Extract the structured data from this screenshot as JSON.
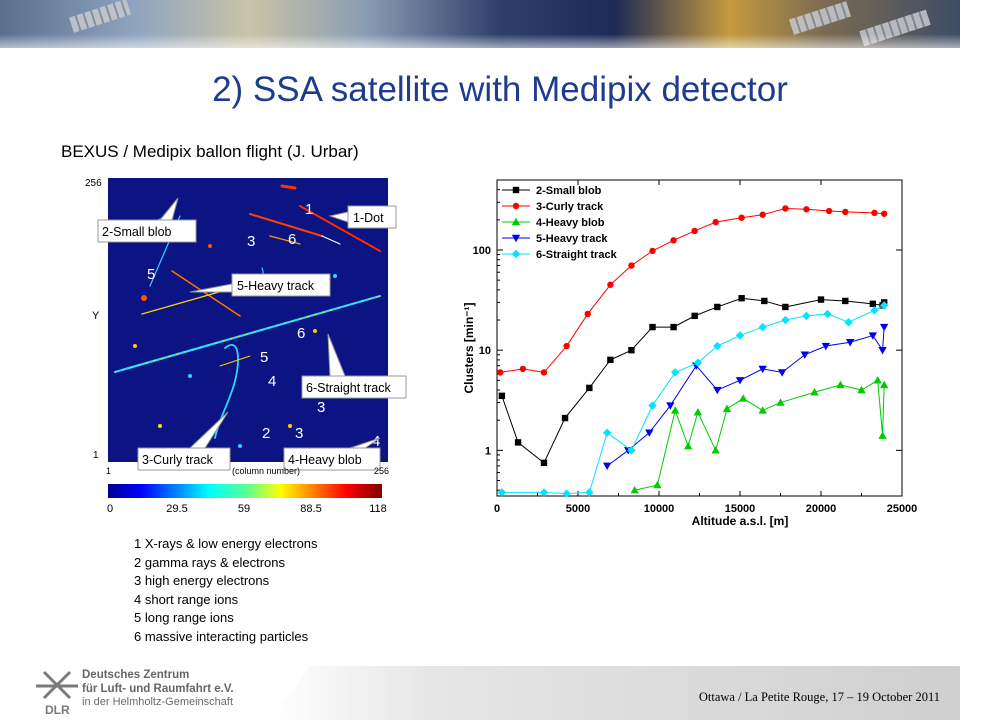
{
  "slide": {
    "title": "2) SSA satellite with Medipix detector",
    "subtitle": "BEXUS / Medipix ballon flight (J. Urbar)",
    "footer_text": "Ottawa / La Petite Rouge, 17 – 19 October 2011",
    "org_lines": [
      "Deutsches Zentrum",
      "für Luft- und Raumfahrt e.V.",
      "in der Helmholtz-Gemeinschaft"
    ],
    "logo_text": "DLR"
  },
  "detector_image": {
    "corner_labels": {
      "y_top": "256",
      "y_axis": "Y",
      "y_bottom": "1",
      "x_left": "1",
      "x_right": "256",
      "x_axis": "(column number)"
    },
    "callouts": [
      "2-Small blob",
      "1-Dot",
      "5-Heavy track",
      "6-Straight track",
      "3-Curly track",
      "4-Heavy blob"
    ],
    "colorbar_ticks": [
      "0",
      "29.5",
      "59",
      "88.5",
      "118"
    ],
    "colors": {
      "background": "#0b1482",
      "callout_bg": "#ffffff"
    }
  },
  "legend_list": [
    "1 X-rays & low energy electrons",
    "2 gamma rays & electrons",
    "3 high energy electrons",
    "4 short range ions",
    "5 long range ions",
    "6 massive interacting particles"
  ],
  "chart_data": {
    "type": "line",
    "xlabel": "Altitude a.s.l. [m]",
    "ylabel": "Clusters [min⁻¹]",
    "xlim": [
      0,
      25000
    ],
    "ylim": [
      0.35,
      500
    ],
    "yscale": "log",
    "xticks": [
      "0",
      "5000",
      "10000",
      "15000",
      "20000",
      "25000"
    ],
    "yticks": [
      "1",
      "10",
      "100"
    ],
    "legend_position": "top-left",
    "series": [
      {
        "name": "2-Small blob",
        "color": "#000000",
        "marker": "square",
        "x": [
          300,
          1300,
          2900,
          4200,
          5700,
          7000,
          8300,
          9600,
          10900,
          12200,
          13600,
          15100,
          16500,
          17800,
          20000,
          21500,
          23200,
          23800,
          23900
        ],
        "y": [
          3.5,
          1.2,
          0.75,
          2.1,
          4.2,
          8,
          10,
          17,
          17,
          22,
          27,
          33,
          31,
          27,
          32,
          31,
          29,
          28,
          30
        ]
      },
      {
        "name": "3-Curly track",
        "color": "#ff0000",
        "marker": "circle",
        "x": [
          200,
          1600,
          2900,
          4300,
          5600,
          7000,
          8300,
          9600,
          10900,
          12200,
          13500,
          15100,
          16400,
          17800,
          19100,
          20500,
          21500,
          23300,
          23900
        ],
        "y": [
          6,
          6.5,
          6,
          11,
          23,
          45,
          70,
          98,
          125,
          155,
          190,
          210,
          225,
          260,
          255,
          245,
          240,
          235,
          230
        ]
      },
      {
        "name": "4-Heavy blob",
        "color": "#00cc00",
        "marker": "triangle-up",
        "x": [
          8500,
          9900,
          11000,
          11800,
          12400,
          13500,
          14200,
          15200,
          16400,
          17500,
          19600,
          21200,
          22500,
          23500,
          23800,
          23900
        ],
        "y": [
          0.4,
          0.45,
          2.5,
          1.1,
          2.4,
          1.0,
          2.6,
          3.3,
          2.5,
          3.0,
          3.8,
          4.5,
          4.0,
          5.0,
          1.4,
          4.5
        ]
      },
      {
        "name": "5-Heavy track",
        "color": "#0000ee",
        "marker": "triangle-down",
        "x": [
          6800,
          8100,
          9400,
          10700,
          12300,
          13600,
          15000,
          16400,
          17600,
          19000,
          20300,
          21800,
          23200,
          23800,
          23900
        ],
        "y": [
          0.7,
          1.0,
          1.5,
          2.8,
          7,
          4,
          5,
          6.5,
          6,
          9,
          11,
          12,
          14,
          10,
          17
        ]
      },
      {
        "name": "6-Straight track",
        "color": "#00e5ff",
        "marker": "diamond",
        "x": [
          300,
          2900,
          4300,
          5700,
          6800,
          8300,
          9600,
          11000,
          12400,
          13600,
          15000,
          16400,
          17800,
          19100,
          20400,
          21700,
          23300,
          23900
        ],
        "y": [
          0.38,
          0.38,
          0.37,
          0.38,
          1.5,
          1.0,
          2.8,
          6,
          7.5,
          11,
          14,
          17,
          20,
          22,
          23,
          19,
          25,
          28
        ]
      }
    ]
  }
}
